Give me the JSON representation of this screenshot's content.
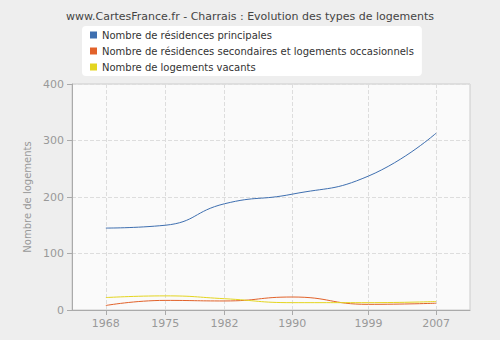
{
  "chart_data": {
    "type": "line",
    "title": "www.CartesFrance.fr - Charrais : Evolution des types de logements",
    "y_label": "Nombre de logements",
    "x": [
      1968,
      1975,
      1982,
      1990,
      1999,
      2007
    ],
    "series": [
      {
        "name": "Nombre de résidences principales",
        "color": "#3e6fb0",
        "values": [
          145,
          150,
          188,
          205,
          237,
          313
        ]
      },
      {
        "name": "Nombre de résidences secondaires et logements occasionnels",
        "color": "#e2622a",
        "values": [
          8,
          17,
          16,
          23,
          10,
          12
        ]
      },
      {
        "name": "Nombre de logements vacants",
        "color": "#e4d520",
        "values": [
          22,
          25,
          20,
          13,
          13,
          15
        ]
      }
    ],
    "xlim": [
      1964,
      2011
    ],
    "xticks": [
      1968,
      1975,
      1982,
      1990,
      1999,
      2007
    ],
    "ylim": [
      0,
      400
    ],
    "yticks": [
      0,
      100,
      200,
      300,
      400
    ],
    "grid": true,
    "legend": "upper left",
    "line_style": "solid"
  }
}
